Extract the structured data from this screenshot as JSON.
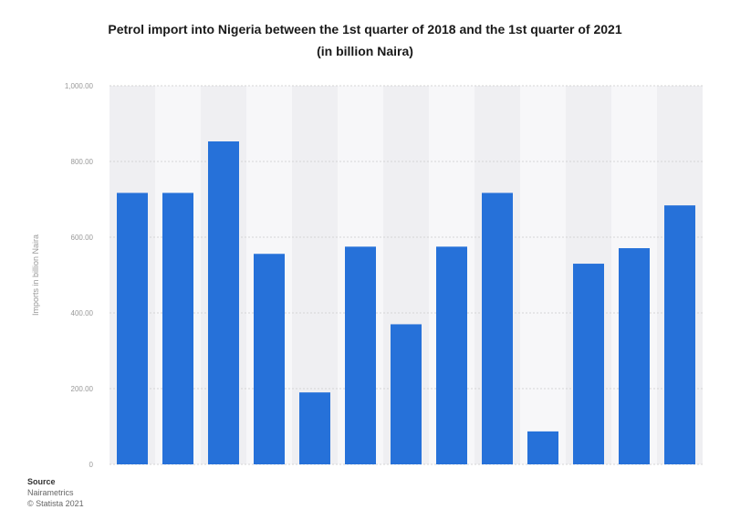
{
  "title_line1": "Petrol import into Nigeria between the 1st quarter of 2018 and the 1st quarter of 2021",
  "title_line2": "(in billion Naira)",
  "source": {
    "heading": "Source",
    "line1": "Nairametrics",
    "line2": "© Statista 2021"
  },
  "colors": {
    "bar": "#2671d9",
    "band_light": "#f7f7f9",
    "band_dark": "#efeff2",
    "grid": "#d6d6d6",
    "tick_text": "#999999"
  },
  "chart_data": {
    "type": "bar",
    "ylabel": "Imports in billion Naira",
    "ylim": [
      0,
      1000
    ],
    "yticks": [
      0,
      200,
      400,
      600,
      800,
      1000
    ],
    "ytick_labels": [
      "0",
      "200.00",
      "400.00",
      "600.00",
      "800.00",
      "1,000.00"
    ],
    "categories": [
      "",
      "",
      "",
      "",
      "",
      "",
      "",
      "",
      "",
      "",
      "",
      "",
      ""
    ],
    "values": [
      717,
      717,
      853,
      556,
      190,
      575,
      370,
      575,
      717,
      87,
      530,
      571,
      684
    ],
    "grid": true
  }
}
